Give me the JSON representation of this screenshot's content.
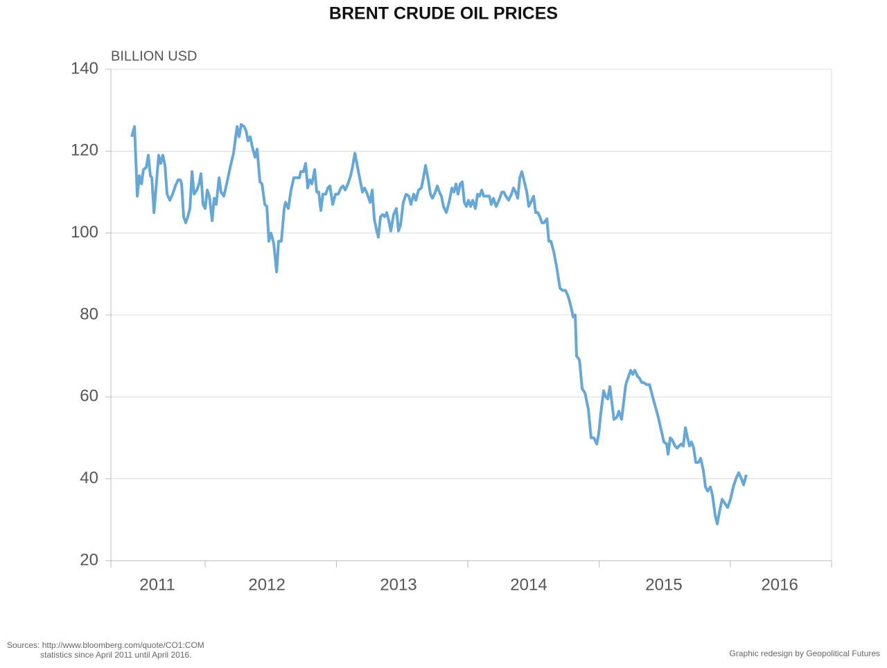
{
  "chart_data": {
    "type": "line",
    "title": "BRENT CRUDE OIL PRICES",
    "y_label": "BILLION USD",
    "source": [
      "Sources: http://www.bloomberg.com/quote/CO1:COM",
      "statistics since April 2011 until April 2016."
    ],
    "credit": "Graphic redesign by Geopolitical Futures",
    "color": "#66a7d6",
    "grid": true,
    "ylim": [
      20,
      140
    ],
    "yticks": [
      20,
      40,
      60,
      80,
      100,
      120,
      140
    ],
    "xlim": [
      2011.282,
      2016.77
    ],
    "xticks": [
      {
        "value": 2011.636,
        "label": "2011"
      },
      {
        "value": 2012.47,
        "label": "2012"
      },
      {
        "value": 2013.472,
        "label": "2013"
      },
      {
        "value": 2014.464,
        "label": "2014"
      },
      {
        "value": 2015.493,
        "label": "2015"
      },
      {
        "value": 2016.375,
        "label": "2016"
      }
    ],
    "xtick_marks": [
      2012,
      2013,
      2014,
      2015,
      2016
    ],
    "x": [
      2011.441,
      2011.462,
      2011.483,
      2011.499,
      2011.515,
      2011.53,
      2011.551,
      2011.567,
      2011.583,
      2011.594,
      2011.61,
      2011.631,
      2011.646,
      2011.662,
      2011.678,
      2011.694,
      2011.71,
      2011.731,
      2011.752,
      2011.773,
      2011.794,
      2011.81,
      2011.821,
      2011.836,
      2011.852,
      2011.868,
      2011.884,
      2011.9,
      2011.916,
      2011.937,
      2011.953,
      2011.968,
      2011.984,
      2012.0,
      2012.016,
      2012.032,
      2012.053,
      2012.069,
      2012.084,
      2012.106,
      2012.121,
      2012.142,
      2012.164,
      2012.19,
      2012.216,
      2012.243,
      2012.259,
      2012.274,
      2012.296,
      2012.311,
      2012.327,
      2012.343,
      2012.359,
      2012.38,
      2012.396,
      2012.417,
      2012.433,
      2012.454,
      2012.47,
      2012.485,
      2012.501,
      2012.522,
      2012.544,
      2012.559,
      2012.58,
      2012.602,
      2012.612,
      2012.633,
      2012.654,
      2012.675,
      2012.697,
      2012.718,
      2012.728,
      2012.749,
      2012.765,
      2012.781,
      2012.797,
      2012.813,
      2012.834,
      2012.85,
      2012.865,
      2012.881,
      2012.897,
      2012.918,
      2012.934,
      2012.95,
      2012.971,
      2012.992,
      2013.013,
      2013.034,
      2013.05,
      2013.066,
      2013.087,
      2013.108,
      2013.124,
      2013.14,
      2013.161,
      2013.182,
      2013.198,
      2013.214,
      2013.235,
      2013.256,
      2013.272,
      2013.288,
      2013.303,
      2013.319,
      2013.335,
      2013.351,
      2013.367,
      2013.383,
      2013.398,
      2013.414,
      2013.435,
      2013.456,
      2013.472,
      2013.488,
      2013.509,
      2013.53,
      2013.551,
      2013.567,
      2013.588,
      2013.604,
      2013.625,
      2013.646,
      2013.662,
      2013.678,
      2013.699,
      2013.715,
      2013.731,
      2013.752,
      2013.768,
      2013.784,
      2013.799,
      2013.815,
      2013.836,
      2013.857,
      2013.879,
      2013.894,
      2013.91,
      2013.926,
      2013.942,
      2013.958,
      2013.974,
      2013.989,
      2014.005,
      2014.021,
      2014.037,
      2014.058,
      2014.074,
      2014.09,
      2014.106,
      2014.121,
      2014.142,
      2014.164,
      2014.179,
      2014.195,
      2014.216,
      2014.237,
      2014.259,
      2014.274,
      2014.29,
      2014.311,
      2014.332,
      2014.348,
      2014.364,
      2014.38,
      2014.396,
      2014.412,
      2014.427,
      2014.449,
      2014.464,
      2014.48,
      2014.501,
      2014.517,
      2014.533,
      2014.549,
      2014.565,
      2014.58,
      2014.602,
      2014.617,
      2014.633,
      2014.654,
      2014.675,
      2014.702,
      2014.723,
      2014.744,
      2014.765,
      2014.786,
      2014.802,
      2014.818,
      2014.828,
      2014.85,
      2014.871,
      2014.892,
      2014.918,
      2014.939,
      2014.96,
      2014.982,
      2014.997,
      2015.013,
      2015.034,
      2015.05,
      2015.066,
      2015.082,
      2015.098,
      2015.113,
      2015.135,
      2015.15,
      2015.171,
      2015.203,
      2015.219,
      2015.24,
      2015.256,
      2015.272,
      2015.293,
      2015.309,
      2015.324,
      2015.34,
      2015.361,
      2015.383,
      2015.404,
      2015.425,
      2015.451,
      2015.472,
      2015.493,
      2015.514,
      2015.525,
      2015.541,
      2015.557,
      2015.578,
      2015.594,
      2015.609,
      2015.625,
      2015.641,
      2015.657,
      2015.673,
      2015.689,
      2015.704,
      2015.72,
      2015.736,
      2015.757,
      2015.773,
      2015.794,
      2015.81,
      2015.826,
      2015.847,
      2015.863,
      2015.884,
      2015.9,
      2015.916,
      2015.937,
      2015.958,
      2015.979,
      2016.0,
      2016.021,
      2016.042,
      2016.063,
      2016.084,
      2016.1,
      2016.121
    ],
    "values": [
      123.5,
      126,
      109,
      114,
      112,
      115.5,
      116,
      119,
      114,
      113.5,
      105,
      113,
      119,
      117,
      119,
      116.5,
      109.5,
      108,
      109.5,
      111.5,
      113,
      113,
      112,
      104,
      102.5,
      104,
      106,
      115,
      109.5,
      110.5,
      112,
      114.5,
      107,
      106,
      110.5,
      109,
      103,
      108.5,
      107,
      113.5,
      110,
      109,
      112,
      116,
      119.5,
      126,
      123.5,
      126.5,
      126,
      125,
      122.5,
      123.5,
      121,
      118.5,
      120.5,
      112.5,
      112,
      107,
      106.5,
      98,
      100,
      97.5,
      90.5,
      98,
      98,
      106,
      107.5,
      106,
      110.5,
      113.5,
      113.5,
      113.5,
      115,
      115,
      117,
      111,
      113,
      112,
      115.5,
      110,
      110,
      105.5,
      109.5,
      109.5,
      111,
      111.5,
      107,
      109.5,
      109.5,
      111,
      111.5,
      110.5,
      112,
      114,
      116.5,
      119.5,
      116,
      112.5,
      110,
      111,
      109.5,
      107.5,
      110.5,
      103.5,
      101,
      99,
      104,
      104.5,
      104,
      105,
      103,
      100.5,
      104.5,
      106,
      100.5,
      102,
      107.5,
      109.5,
      109,
      107,
      109.5,
      108,
      110.5,
      111,
      113.5,
      116.5,
      113,
      109.5,
      108.5,
      110,
      111.5,
      110,
      109,
      106.5,
      105,
      107.5,
      111,
      110,
      112,
      109.5,
      112,
      112.5,
      107.5,
      106.5,
      108,
      106.5,
      108,
      106,
      109.5,
      109,
      110.5,
      109,
      109,
      109,
      107,
      108.5,
      106.5,
      108,
      110,
      110,
      109,
      108,
      109.5,
      111,
      110,
      108.5,
      113.5,
      115,
      113,
      110,
      106.5,
      107.5,
      109,
      105,
      105,
      104,
      102.5,
      102.5,
      103.5,
      98,
      98,
      95.5,
      92,
      86.5,
      86,
      86,
      84.5,
      82,
      79.5,
      80,
      70,
      69,
      62,
      61,
      57,
      50,
      50,
      48.5,
      51,
      56,
      61.5,
      60,
      59.5,
      62.5,
      58.5,
      54.5,
      55,
      56.5,
      54.5,
      63,
      64.5,
      66.5,
      65.5,
      66.5,
      65,
      64.5,
      63.5,
      63.5,
      63,
      63,
      60.5,
      58,
      55,
      52,
      49,
      48.5,
      46,
      50,
      49.5,
      48,
      47.5,
      48,
      48.5,
      48,
      52.5,
      50,
      48,
      49,
      47.5,
      44,
      44,
      45,
      42,
      38,
      37,
      38,
      36,
      31,
      29,
      32,
      35,
      34,
      33,
      35,
      38,
      40,
      41.5,
      40,
      38.5,
      41
    ]
  }
}
